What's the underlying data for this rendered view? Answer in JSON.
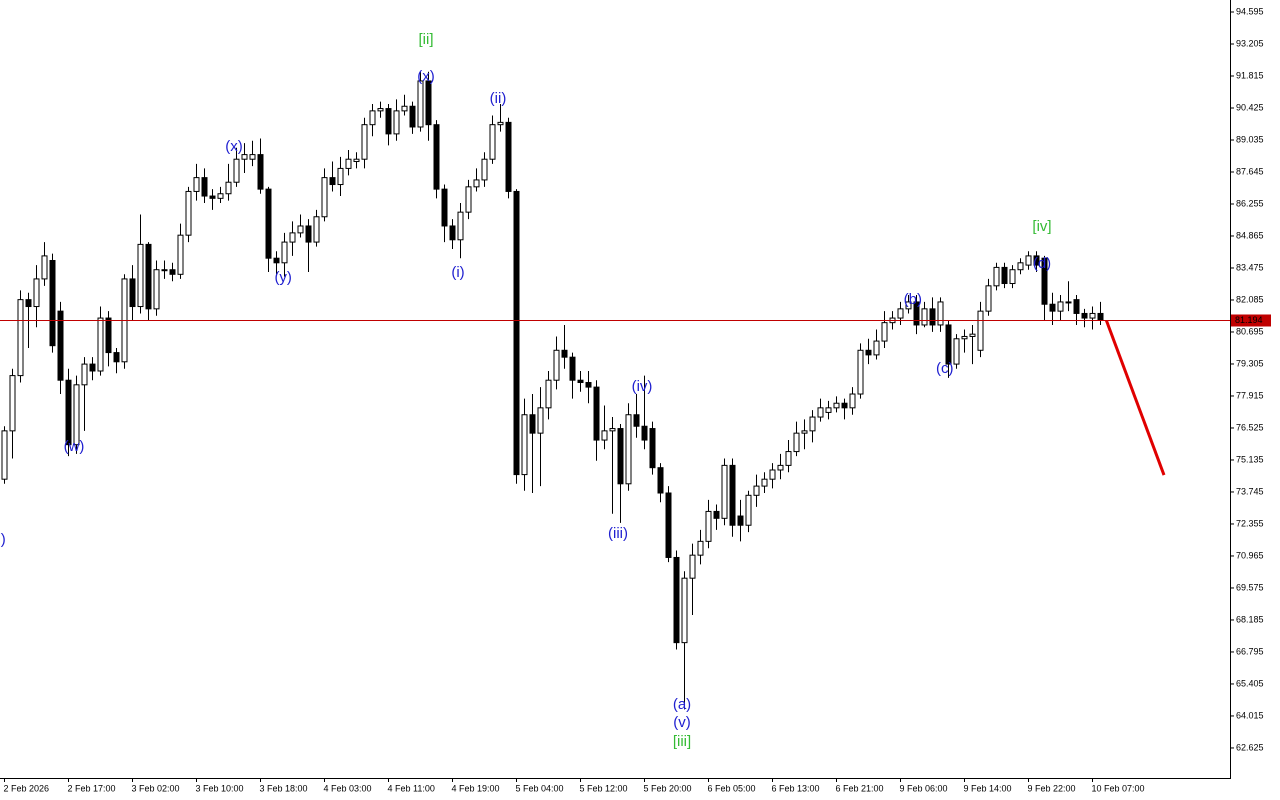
{
  "chart_data": {
    "type": "candlestick",
    "open": [
      74.3,
      76.4,
      78.8,
      82.1,
      81.8,
      83.0,
      83.8,
      81.6,
      78.6,
      75.8,
      78.4,
      79.3,
      79.0,
      81.3,
      79.8,
      79.4,
      83.0,
      81.8,
      84.5,
      81.7,
      83.4,
      83.4,
      83.2,
      84.9,
      86.8,
      87.4,
      86.6,
      86.5,
      86.7,
      87.2,
      88.2,
      88.2,
      88.4,
      86.9,
      83.9,
      83.7,
      84.6,
      85.0,
      85.3,
      84.6,
      85.7,
      87.4,
      87.1,
      87.8,
      88.1,
      88.2,
      89.7,
      90.3,
      90.4,
      89.3,
      90.3,
      90.5,
      89.6,
      91.6,
      89.7,
      86.9,
      85.3,
      84.7,
      85.9,
      87.0,
      87.3,
      88.2,
      89.7,
      89.8,
      86.8,
      74.5,
      77.1,
      76.3,
      77.4,
      78.6,
      79.9,
      79.6,
      78.6,
      78.5,
      78.3,
      76.0,
      76.4,
      76.5,
      74.1,
      77.1,
      76.6,
      76.5,
      74.8,
      73.7,
      70.9,
      67.2,
      70.0,
      71.0,
      71.6,
      72.9,
      72.6,
      74.9,
      72.7,
      72.3,
      73.6,
      74.0,
      74.3,
      74.7,
      74.9,
      75.5,
      76.3,
      76.4,
      77.0,
      77.2,
      77.4,
      77.6,
      77.4,
      78.0,
      79.9,
      79.7,
      80.3,
      81.1,
      81.3,
      81.7,
      82.0,
      81.0,
      81.7,
      81.0,
      81.0,
      79.3,
      80.4,
      80.5,
      79.9,
      81.6,
      82.7,
      83.5,
      82.8,
      83.4,
      83.6,
      84.0,
      83.9,
      81.9,
      81.6,
      82.0,
      82.1,
      81.5,
      81.3,
      81.5
    ],
    "high": [
      76.6,
      79.1,
      82.5,
      82.4,
      83.6,
      84.6,
      84.1,
      82.0,
      79.1,
      78.8,
      79.6,
      79.6,
      81.8,
      81.6,
      80.0,
      83.2,
      83.6,
      85.8,
      84.6,
      83.8,
      83.8,
      83.7,
      85.4,
      87.0,
      88.0,
      87.8,
      86.9,
      87.0,
      88.0,
      88.7,
      88.9,
      89.0,
      89.1,
      87.0,
      84.2,
      85.0,
      85.5,
      85.8,
      85.6,
      86.0,
      87.8,
      88.1,
      88.3,
      88.6,
      88.5,
      90.0,
      90.6,
      90.7,
      90.6,
      90.8,
      91.0,
      90.7,
      92.0,
      92.0,
      89.9,
      87.1,
      85.6,
      86.3,
      87.3,
      87.8,
      88.5,
      90.1,
      90.6,
      90.0,
      86.9,
      77.8,
      78.0,
      78.3,
      79.0,
      80.5,
      81.0,
      79.8,
      79.0,
      79.0,
      78.6,
      77.5,
      77.0,
      76.7,
      77.6,
      78.0,
      78.8,
      76.8,
      75.0,
      74.0,
      71.2,
      70.3,
      71.5,
      72.1,
      73.4,
      73.2,
      75.2,
      75.2,
      73.4,
      73.8,
      74.5,
      74.6,
      75.0,
      75.4,
      76.0,
      76.8,
      76.9,
      77.3,
      77.8,
      77.7,
      77.9,
      77.8,
      78.3,
      80.2,
      80.4,
      80.8,
      81.6,
      81.6,
      82.0,
      82.3,
      82.3,
      82.0,
      82.2,
      82.2,
      81.2,
      80.6,
      80.8,
      81.0,
      82.0,
      83.0,
      83.7,
      83.7,
      83.6,
      83.9,
      84.2,
      84.2,
      84.0,
      82.4,
      82.3,
      82.9,
      82.3,
      81.7,
      81.8,
      82.0
    ],
    "low": [
      74.1,
      75.2,
      78.5,
      80.0,
      80.9,
      82.7,
      79.8,
      78.0,
      75.3,
      75.4,
      76.4,
      78.6,
      78.8,
      79.2,
      78.9,
      79.1,
      81.2,
      81.5,
      81.2,
      81.4,
      83.0,
      82.9,
      83.0,
      84.6,
      86.4,
      86.3,
      86.0,
      86.3,
      86.4,
      87.0,
      87.6,
      87.9,
      86.7,
      83.3,
      83.2,
      83.1,
      84.0,
      84.8,
      83.3,
      84.4,
      85.5,
      86.8,
      86.6,
      87.5,
      87.8,
      87.8,
      89.2,
      90.0,
      88.8,
      89.0,
      90.1,
      89.3,
      89.4,
      89.0,
      86.5,
      84.6,
      84.3,
      83.9,
      85.6,
      86.8,
      87.0,
      88.0,
      89.4,
      86.5,
      74.1,
      73.8,
      73.7,
      74.0,
      76.9,
      78.2,
      79.1,
      77.8,
      78.1,
      77.6,
      75.1,
      75.6,
      72.8,
      72.4,
      73.8,
      76.1,
      75.6,
      74.5,
      73.3,
      70.7,
      66.9,
      64.3,
      68.4,
      70.6,
      71.3,
      72.1,
      72.3,
      71.8,
      71.6,
      72.0,
      73.1,
      73.7,
      73.9,
      74.3,
      74.6,
      75.3,
      75.6,
      75.9,
      76.8,
      76.9,
      77.2,
      76.9,
      77.1,
      77.8,
      79.3,
      79.5,
      80.0,
      80.8,
      81.0,
      81.5,
      80.6,
      80.9,
      80.7,
      80.7,
      78.7,
      79.1,
      79.8,
      79.3,
      79.6,
      81.4,
      82.5,
      82.6,
      82.6,
      83.2,
      83.4,
      83.3,
      81.2,
      81.0,
      81.2,
      81.6,
      81.0,
      80.9,
      80.8,
      81.0
    ],
    "close": [
      76.4,
      78.8,
      82.1,
      81.8,
      83.0,
      84.0,
      80.1,
      78.6,
      75.8,
      78.4,
      79.3,
      79.0,
      81.3,
      79.8,
      79.4,
      83.0,
      81.8,
      84.5,
      81.7,
      83.4,
      83.4,
      83.2,
      84.9,
      86.8,
      87.4,
      86.6,
      86.5,
      86.7,
      87.2,
      88.2,
      88.4,
      88.4,
      86.9,
      83.9,
      83.7,
      84.6,
      85.0,
      85.3,
      84.6,
      85.7,
      87.4,
      87.1,
      87.8,
      88.2,
      88.2,
      89.7,
      90.3,
      90.4,
      89.3,
      90.3,
      90.5,
      89.6,
      91.6,
      89.7,
      86.9,
      85.3,
      84.7,
      85.9,
      87.0,
      87.3,
      88.2,
      89.7,
      89.8,
      86.8,
      74.5,
      77.1,
      76.3,
      77.4,
      78.6,
      79.9,
      79.6,
      78.6,
      78.5,
      78.3,
      76.0,
      76.4,
      76.5,
      74.1,
      77.1,
      76.6,
      76.0,
      74.8,
      73.7,
      70.9,
      67.2,
      70.0,
      71.0,
      71.6,
      72.9,
      72.6,
      74.9,
      72.3,
      72.3,
      73.6,
      74.0,
      74.3,
      74.7,
      74.9,
      75.5,
      76.3,
      76.4,
      77.0,
      77.4,
      77.4,
      77.6,
      77.4,
      78.0,
      79.9,
      79.7,
      80.3,
      81.1,
      81.3,
      81.7,
      82.0,
      81.0,
      81.7,
      81.0,
      82.0,
      79.3,
      80.4,
      80.5,
      80.6,
      81.6,
      82.7,
      83.5,
      82.8,
      83.4,
      83.7,
      84.0,
      83.6,
      81.9,
      81.6,
      82.0,
      82.0,
      81.5,
      81.3,
      81.5,
      81.194
    ],
    "up_color": "#ffffff",
    "down_color": "#000000",
    "outline_color": "#000000",
    "xlim": [
      -0.5,
      153.25
    ],
    "xticks": [
      {
        "value": 0,
        "label": "2 Feb 2026"
      },
      {
        "value": 8,
        "label": "2 Feb 17:00"
      },
      {
        "value": 16,
        "label": "3 Feb 02:00"
      },
      {
        "value": 24,
        "label": "3 Feb 10:00"
      },
      {
        "value": 32,
        "label": "3 Feb 18:00"
      },
      {
        "value": 40,
        "label": "4 Feb 03:00"
      },
      {
        "value": 48,
        "label": "4 Feb 11:00"
      },
      {
        "value": 56,
        "label": "4 Feb 19:00"
      },
      {
        "value": 64,
        "label": "5 Feb 04:00"
      },
      {
        "value": 72,
        "label": "5 Feb 12:00"
      },
      {
        "value": 80,
        "label": "5 Feb 20:00"
      },
      {
        "value": 88,
        "label": "6 Feb 05:00"
      },
      {
        "value": 96,
        "label": "6 Feb 13:00"
      },
      {
        "value": 104,
        "label": "6 Feb 21:00"
      },
      {
        "value": 112,
        "label": "9 Feb 06:00"
      },
      {
        "value": 120,
        "label": "9 Feb 14:00"
      },
      {
        "value": 128,
        "label": "9 Feb 22:00"
      },
      {
        "value": 136,
        "label": "10 Feb 07:00"
      }
    ],
    "ylim": [
      61.32,
      95.116
    ],
    "yticks": [
      94.595,
      93.205,
      91.815,
      90.425,
      89.035,
      87.645,
      86.255,
      84.865,
      83.475,
      82.085,
      80.695,
      79.305,
      77.915,
      76.525,
      75.135,
      73.745,
      72.355,
      70.965,
      69.575,
      68.185,
      66.795,
      65.405,
      64.015,
      62.625
    ],
    "current_price": 81.194,
    "current_price_color": "#c00000",
    "forecast": {
      "x": [
        137.8,
        145
      ],
      "values": [
        81.194,
        74.48
      ],
      "color": "#e00000"
    },
    "annotations": [
      {
        "text": ")",
        "x": -0.1,
        "y": 71.66,
        "color": "#2020d0"
      },
      {
        "text": "(w)",
        "x": 8.75,
        "y": 75.7,
        "color": "#2020d0"
      },
      {
        "text": "(x)",
        "x": 28.75,
        "y": 88.73,
        "color": "#2020d0"
      },
      {
        "text": "(y)",
        "x": 34.9,
        "y": 83.04,
        "color": "#2020d0"
      },
      {
        "text": "[ii]",
        "x": 52.75,
        "y": 93.38,
        "color": "#33bb33"
      },
      {
        "text": "(x)",
        "x": 52.75,
        "y": 91.77,
        "color": "#2020d0"
      },
      {
        "text": "(ii)",
        "x": 61.75,
        "y": 90.82,
        "color": "#2020d0"
      },
      {
        "text": "(i)",
        "x": 56.75,
        "y": 83.26,
        "color": "#2020d0"
      },
      {
        "text": "(iv)",
        "x": 79.75,
        "y": 78.3,
        "color": "#2020d0"
      },
      {
        "text": "(iii)",
        "x": 76.75,
        "y": 71.92,
        "color": "#2020d0"
      },
      {
        "text": "(a)",
        "x": 84.75,
        "y": 64.49,
        "color": "#2020d0"
      },
      {
        "text": "(v)",
        "x": 84.75,
        "y": 63.71,
        "color": "#2020d0"
      },
      {
        "text": "[iii]",
        "x": 84.75,
        "y": 62.88,
        "color": "#33bb33"
      },
      {
        "text": "(b)",
        "x": 113.6,
        "y": 82.08,
        "color": "#2020d0"
      },
      {
        "text": "(c)",
        "x": 117.6,
        "y": 79.09,
        "color": "#2020d0"
      },
      {
        "text": "[iv]",
        "x": 129.75,
        "y": 85.25,
        "color": "#33bb33"
      },
      {
        "text": "(d)",
        "x": 129.75,
        "y": 83.65,
        "color": "#2020d0"
      }
    ]
  }
}
